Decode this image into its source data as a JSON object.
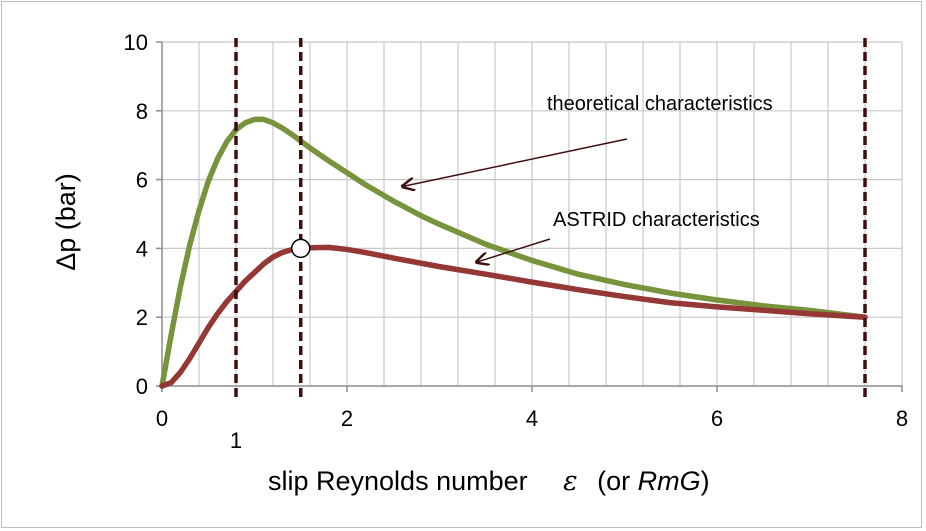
{
  "chart_data": {
    "type": "line",
    "xlabel": "slip Reynolds number",
    "xlabel_symbol": "ε",
    "xlabel_paren_open": "(or ",
    "xlabel_italic": "RmG",
    "xlabel_paren_close": ")",
    "ylabel": "Δp  (bar)",
    "xlim": [
      0,
      8
    ],
    "ylim": [
      0,
      10
    ],
    "x_ticks": [
      0,
      2,
      4,
      6,
      8
    ],
    "y_ticks": [
      0,
      2,
      4,
      6,
      8,
      10
    ],
    "x_minor_grid_step": 0.4,
    "grid": true,
    "series": [
      {
        "color": "#77933c",
        "x": [
          0,
          0.1,
          0.2,
          0.3,
          0.4,
          0.5,
          0.6,
          0.7,
          0.8,
          0.9,
          1.0,
          1.1,
          1.2,
          1.3,
          1.4,
          1.5,
          1.6,
          1.8,
          2.0,
          2.2,
          2.5,
          2.8,
          3.0,
          3.5,
          4.0,
          4.5,
          5.0,
          5.5,
          6.0,
          6.5,
          7.0,
          7.6
        ],
        "y": [
          0,
          1.5,
          2.9,
          4.1,
          5.1,
          5.95,
          6.6,
          7.1,
          7.45,
          7.65,
          7.75,
          7.75,
          7.65,
          7.5,
          7.32,
          7.12,
          6.92,
          6.55,
          6.2,
          5.85,
          5.38,
          4.95,
          4.7,
          4.12,
          3.65,
          3.25,
          2.95,
          2.7,
          2.5,
          2.33,
          2.2,
          2.0
        ]
      },
      {
        "color": "#953735",
        "x": [
          0,
          0.1,
          0.2,
          0.3,
          0.4,
          0.5,
          0.6,
          0.7,
          0.8,
          0.9,
          1.0,
          1.1,
          1.2,
          1.3,
          1.4,
          1.5,
          1.6,
          1.8,
          2.0,
          2.2,
          2.5,
          3.0,
          3.5,
          4.0,
          4.5,
          5.0,
          5.5,
          6.0,
          6.5,
          7.0,
          7.6
        ],
        "y": [
          0,
          0.1,
          0.4,
          0.8,
          1.25,
          1.7,
          2.1,
          2.45,
          2.75,
          3.05,
          3.3,
          3.55,
          3.75,
          3.88,
          3.96,
          4.0,
          4.02,
          4.03,
          3.97,
          3.88,
          3.72,
          3.47,
          3.25,
          3.02,
          2.8,
          2.6,
          2.42,
          2.3,
          2.2,
          2.1,
          2.0
        ]
      }
    ],
    "vertical_markers": {
      "color": "#3f0f0f",
      "style": "dashed",
      "x": [
        0.8,
        1.5,
        7.6
      ]
    },
    "extra_tick_label": {
      "x": 0.8,
      "text": "1"
    },
    "point_marker": {
      "x": 1.5,
      "y": 4.0,
      "fill": "#ffffff"
    },
    "annotations": [
      {
        "text": "theoretical characteristics",
        "series_index": 0,
        "arrow_to": {
          "x": 2.6,
          "y": 5.8
        }
      },
      {
        "text": "ASTRID  characteristics",
        "series_index": 1,
        "arrow_to": {
          "x": 3.4,
          "y": 3.6
        }
      }
    ]
  }
}
